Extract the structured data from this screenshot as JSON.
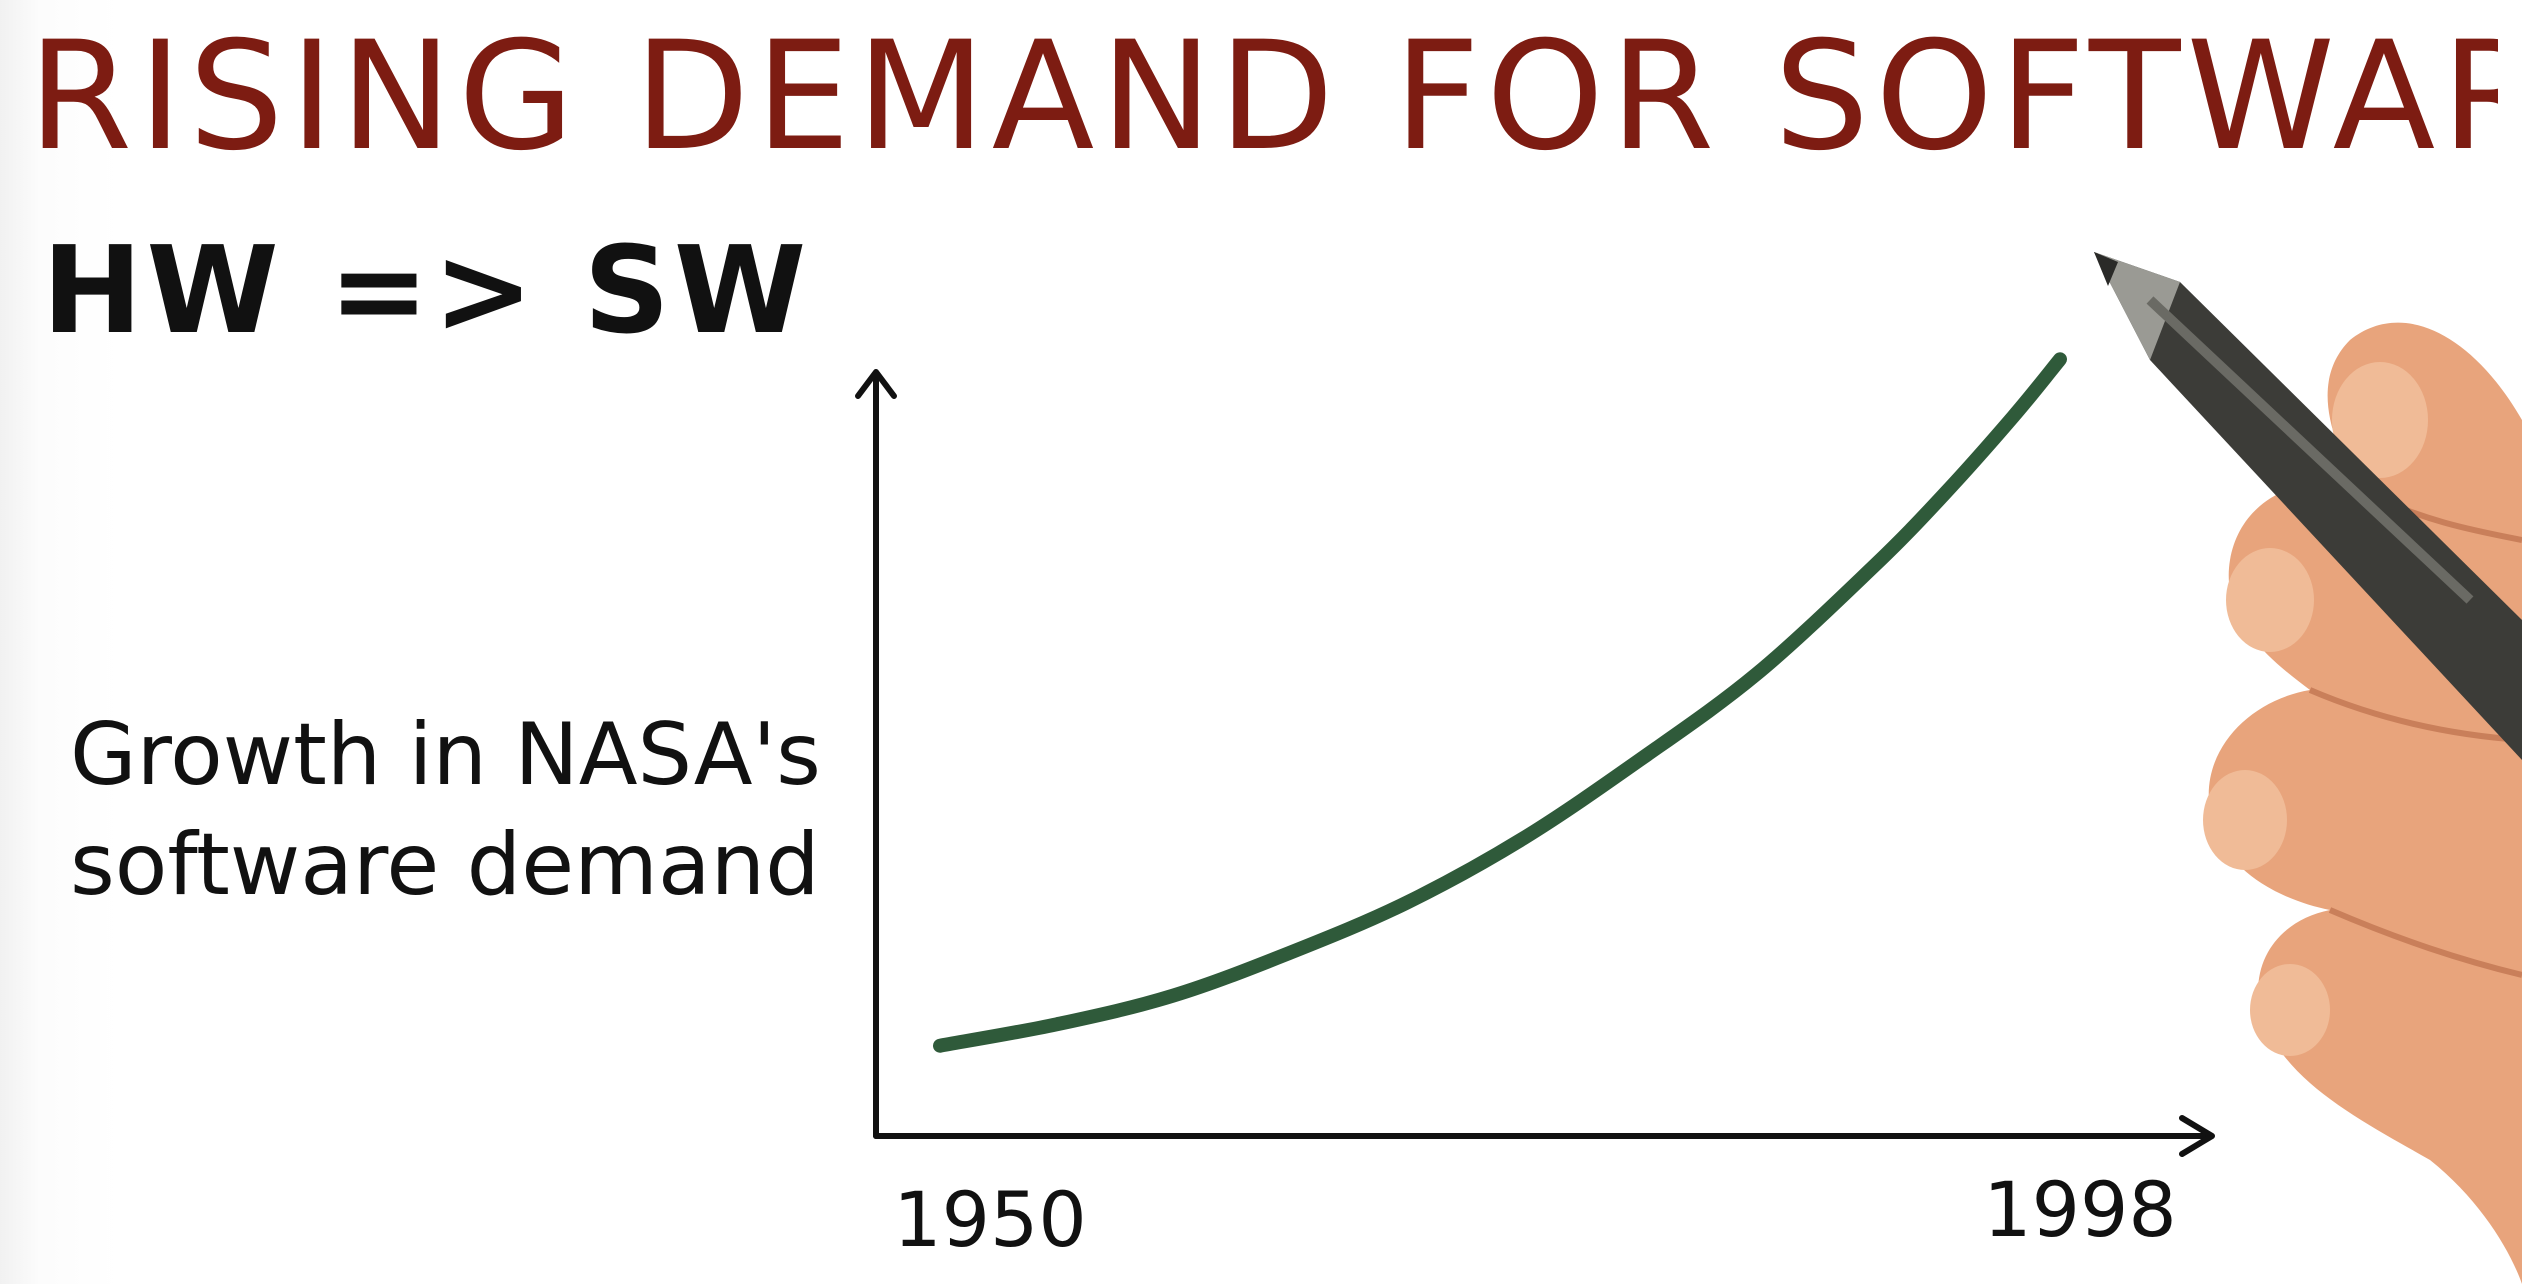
{
  "title": "RISING DEMAND FOR SOFTWARE",
  "subtitle": "HW => SW",
  "chart_data": {
    "type": "line",
    "title": "",
    "xlabel": "",
    "ylabel_lines": [
      "Growth in NASA's",
      "software demand"
    ],
    "x_tick_labels": [
      "1950",
      "1998"
    ],
    "xlim": [
      1950,
      1998
    ],
    "ylim": [
      0,
      100
    ],
    "grid": false,
    "legend": "none",
    "series": [
      {
        "color": "#2f5a3a",
        "x": [
          1950,
          1955,
          1960,
          1965,
          1970,
          1975,
          1980,
          1985,
          1990,
          1993,
          1996,
          1998
        ],
        "y": [
          2,
          5,
          9,
          15,
          22,
          31,
          42,
          54,
          69,
          79,
          90,
          98
        ]
      }
    ]
  },
  "colors": {
    "title": "#7d1c12",
    "ink": "#111111",
    "curve": "#2f5a3a",
    "skin": "#e8a47c",
    "pen": "#3c3c38"
  },
  "decor": {
    "hand": "hand-illustration",
    "pen": "pen-illustration"
  }
}
